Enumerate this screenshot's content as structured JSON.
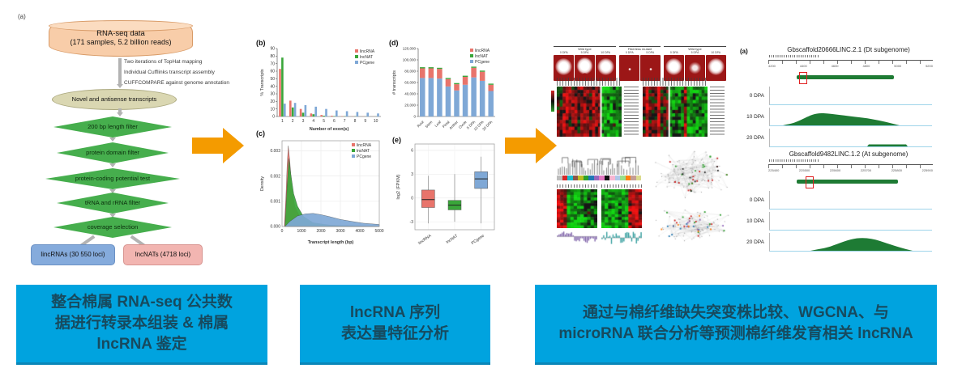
{
  "flowchart": {
    "label": "(a)",
    "source_line1": "RNA-seq data",
    "source_line2": "(171 samples, 5.2 billion reads)",
    "steps": [
      "Two iterations of TopHat mapping",
      "Individual Cufflinks transcript assembly",
      "CUFFCOMPARE against genome annotation"
    ],
    "intermediate": "Novel and antisense transcripts",
    "filters": [
      "200 bp length filter",
      "protein domain filter",
      "protein-coding potential test",
      "tRNA and rRNA filter",
      "coverage selection"
    ],
    "output_linc": "lincRNAs (30 550 loci)",
    "output_nat": "lncNATs (4718 loci)"
  },
  "chart_data": [
    {
      "id": "exon_count",
      "type": "bar",
      "label": "(b)",
      "categories": [
        "1",
        "2",
        "3",
        "4",
        "5",
        "6",
        "7",
        "8",
        "9",
        "10"
      ],
      "series": [
        {
          "name": "lincRNA",
          "color": "#E8746B",
          "values": [
            63,
            21,
            10,
            4,
            2,
            1,
            0.5,
            0.3,
            0.2,
            0.1
          ]
        },
        {
          "name": "lncNAT",
          "color": "#3AA63A",
          "values": [
            78,
            12,
            5,
            3,
            1,
            0.5,
            0.3,
            0.2,
            0.1,
            0.1
          ]
        },
        {
          "name": "PCgene",
          "color": "#7FA8D6",
          "values": [
            17,
            18,
            15,
            13,
            10,
            8,
            7,
            6,
            5,
            4
          ]
        }
      ],
      "xlabel": "Number of exon(s)",
      "ylabel": "% Transcripts",
      "ylim": [
        0,
        90
      ],
      "ytick_step": 10,
      "legend_position": "top-right"
    },
    {
      "id": "transcript_length_density",
      "type": "area",
      "label": "(c)",
      "xlabel": "Transcript length (bp)",
      "ylabel": "Density",
      "xlim": [
        0,
        5000
      ],
      "ylim": [
        0,
        0.0034
      ],
      "xticks": [
        0,
        1000,
        2000,
        3000,
        4000,
        5000
      ],
      "yticks": [
        "0.000",
        "0.001",
        "0.002",
        "0.003"
      ],
      "series": [
        {
          "name": "lincRNA",
          "color": "#E8746B",
          "points": [
            [
              120,
              0
            ],
            [
              200,
              0.0012
            ],
            [
              260,
              0.0024
            ],
            [
              320,
              0.0032
            ],
            [
              400,
              0.0026
            ],
            [
              500,
              0.0015
            ],
            [
              650,
              0.0008
            ],
            [
              900,
              0.0004
            ],
            [
              1300,
              0.0002
            ],
            [
              2000,
              8e-05
            ],
            [
              3000,
              3e-05
            ],
            [
              5000,
              1e-05
            ]
          ]
        },
        {
          "name": "lncNAT",
          "color": "#3AA63A",
          "points": [
            [
              150,
              0
            ],
            [
              260,
              0.0016
            ],
            [
              350,
              0.0027
            ],
            [
              450,
              0.0021
            ],
            [
              600,
              0.0013
            ],
            [
              800,
              0.0008
            ],
            [
              1100,
              0.0004
            ],
            [
              1600,
              0.00015
            ],
            [
              2500,
              5e-05
            ],
            [
              5000,
              1e-05
            ]
          ]
        },
        {
          "name": "PCgene",
          "color": "#7FA8D6",
          "points": [
            [
              150,
              0
            ],
            [
              400,
              0.0002
            ],
            [
              800,
              0.00042
            ],
            [
              1200,
              0.0005
            ],
            [
              1600,
              0.00052
            ],
            [
              2000,
              0.00047
            ],
            [
              2500,
              0.00038
            ],
            [
              3000,
              0.00028
            ],
            [
              3600,
              0.0002
            ],
            [
              4200,
              0.00013
            ],
            [
              5000,
              8e-05
            ]
          ]
        }
      ],
      "legend_position": "top-right"
    },
    {
      "id": "tissue_transcripts",
      "type": "stacked_bar",
      "label": "(d)",
      "categories": [
        "Root",
        "Stem",
        "Leaf",
        "Petal",
        "Anther",
        "Ovule",
        "5 DPA",
        "10 DPA",
        "20 DPA"
      ],
      "series": [
        {
          "name": "PCgene",
          "color": "#7FA8D6",
          "values": [
            68000,
            68000,
            67000,
            53000,
            46000,
            56000,
            69000,
            63000,
            45000
          ]
        },
        {
          "name": "lincRNA",
          "color": "#E8746B",
          "values": [
            17000,
            17000,
            17000,
            13000,
            11000,
            14000,
            17000,
            16000,
            11000
          ]
        },
        {
          "name": "lncNAT",
          "color": "#3AA63A",
          "values": [
            2000,
            2000,
            2000,
            2000,
            2000,
            2000,
            2000,
            2000,
            2000
          ]
        }
      ],
      "legend_order": [
        "lincRNA",
        "lncNAT",
        "PCgene"
      ],
      "ylabel": "# transcripts",
      "ylim": [
        0,
        120000
      ],
      "yticks": [
        "0",
        "20,000",
        "40,000",
        "60,000",
        "80,000",
        "100,000",
        "120,000"
      ]
    },
    {
      "id": "expression_level",
      "type": "box",
      "label": "(e)",
      "categories": [
        "lincRNA",
        "lncNAT",
        "PCgene"
      ],
      "colors": [
        "#E8746B",
        "#3AA63A",
        "#7FA8D6"
      ],
      "ylabel": "log2 (FPKM)",
      "yticks": [
        -3,
        0,
        3,
        6
      ],
      "ylim": [
        -4,
        6.8
      ],
      "boxes": [
        {
          "min": -3.2,
          "q1": -1.2,
          "med": -0.2,
          "q3": 1.0,
          "max": 2.8
        },
        {
          "min": -3.0,
          "q1": -1.5,
          "med": -0.9,
          "q3": -0.3,
          "max": 3.0
        },
        {
          "min": -3.2,
          "q1": 1.2,
          "med": 2.4,
          "q3": 3.3,
          "max": 5.2
        }
      ]
    }
  ],
  "mutant_panel": {
    "groups": [
      {
        "header": "Wild type",
        "tiles": [
          {
            "label": "0 DPA",
            "fiber": "full"
          },
          {
            "label": "5 DPA",
            "fiber": "notch"
          },
          {
            "label": "10 DPA",
            "fiber": "full"
          }
        ]
      },
      {
        "header": "Fiberless mutant",
        "tiles": [
          {
            "label": "0 DPA",
            "fiber": "none"
          },
          {
            "label": "5 DPA",
            "fiber": "none"
          }
        ]
      },
      {
        "header": "Wild type",
        "tiles": [
          {
            "label": "0 DPA",
            "fiber": "full"
          },
          {
            "label": "5 DPA",
            "fiber": "sparse"
          },
          {
            "label": "10 DPA",
            "fiber": "full"
          }
        ]
      }
    ]
  },
  "wgcna": {
    "module_colors": [
      "#bdbdbd",
      "#d62728",
      "#17becf",
      "#8c564b",
      "#bcbd22",
      "#2ca02c",
      "#1f77b4",
      "#9467bd",
      "#e377c2",
      "#111111",
      "#f7b6d2",
      "#aec7e8",
      "#98df8a",
      "#ff7f0e",
      "#c49c94",
      "#dbdb8d"
    ]
  },
  "browser": {
    "panels": [
      {
        "label": "(a)",
        "title": "Gbscaffold20666LINC.2.1 (Dt subgenome)",
        "ruler_ticks": [
          "4200",
          "4400",
          "4600",
          "4800",
          "5000",
          "5200"
        ],
        "tracks": [
          {
            "name": "0 DPA"
          },
          {
            "name": "10 DPA"
          },
          {
            "name": "20 DPA"
          }
        ]
      },
      {
        "label": "",
        "title": "Gbscaffold9482LINC.1.2 (At subgenome)",
        "ruler_ticks": [
          "225400",
          "225500",
          "225600",
          "225700",
          "225800",
          "225900"
        ],
        "tracks": [
          {
            "name": "0 DPA"
          },
          {
            "name": "10 DPA"
          },
          {
            "name": "20 DPA"
          }
        ]
      }
    ]
  },
  "captions": {
    "step1": {
      "lines": [
        "整合棉属 RNA-seq 公共数",
        "据进行转录本组装 & 棉属",
        "lncRNA 鉴定"
      ]
    },
    "step2": {
      "lines": [
        "lncRNA 序列",
        "表达量特征分析"
      ]
    },
    "step3": {
      "lines": [
        "通过与棉纤维缺失突变株比较、WGCNA、与",
        "microRNA 联合分析等预测棉纤维发育相关 lncRNA"
      ]
    }
  },
  "colors": {
    "caption_bg": "#00A3DF",
    "caption_text": "#174A5E",
    "arrow_orange": "#F49B00",
    "lincRNA": "#E8746B",
    "lncNAT": "#3AA63A",
    "PCgene": "#7FA8D6",
    "coverage_green": "#1E7B34",
    "baseline_blue": "#9FD4EA"
  }
}
